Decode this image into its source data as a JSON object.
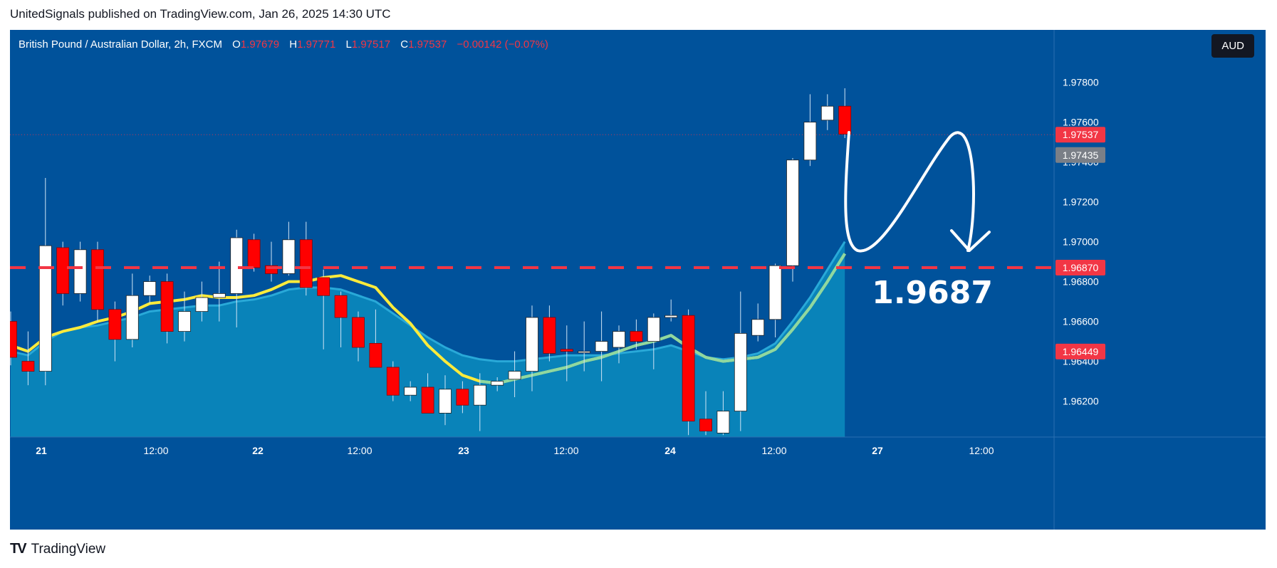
{
  "header": {
    "published": "UnitedSignals published on TradingView.com, Jan 26, 2025 14:30 UTC"
  },
  "legend": {
    "symbol": "British Pound / Australian Dollar, 2h, FXCM",
    "o_label": "O",
    "o_value": "1.97679",
    "h_label": "H",
    "h_value": "1.97771",
    "l_label": "L",
    "l_value": "1.97517",
    "c_label": "C",
    "c_value": "1.97537",
    "change": "−0.00142 (−0.07%)"
  },
  "currency_button": "AUD",
  "footer": {
    "brand": "TradingView",
    "logo_glyph": "TV"
  },
  "annotation": {
    "target_text": "1.9687"
  },
  "colors": {
    "background": "#00529b",
    "bull": "#ffffff",
    "bear": "#ff0000",
    "ma_fast": "#ffeb3b",
    "ma_slow": "#8fd8a0",
    "area": "#0a86bb",
    "level": "#f23645"
  },
  "chart_data": {
    "type": "candlestick",
    "title": "British Pound / Australian Dollar, 2h, FXCM",
    "ylim": [
      1.9602,
      1.9792
    ],
    "y_ticks": [
      "1.97800",
      "1.97600",
      "1.97400",
      "1.97200",
      "1.97000",
      "1.96800",
      "1.96600",
      "1.96400",
      "1.96200"
    ],
    "x_ticks": [
      "21",
      "12:00",
      "22",
      "12:00",
      "23",
      "12:00",
      "24",
      "12:00",
      "27",
      "12:00"
    ],
    "price_labels": [
      {
        "text": "1.97537",
        "value": 1.97537,
        "color": "#f23645"
      },
      {
        "text": "1.97435",
        "value": 1.97435,
        "color": "#7a7f87"
      },
      {
        "text": "1.96870",
        "value": 1.9687,
        "color": "#f23645"
      },
      {
        "text": "1.96449",
        "value": 1.96449,
        "color": "#f23645"
      }
    ],
    "level": 1.9687,
    "candles": [
      [
        1.966,
        1.9665,
        1.9638,
        1.9642
      ],
      [
        1.964,
        1.9655,
        1.9628,
        1.9635
      ],
      [
        1.9635,
        1.9732,
        1.9628,
        1.9698
      ],
      [
        1.9697,
        1.97,
        1.9668,
        1.9674
      ],
      [
        1.9674,
        1.97,
        1.967,
        1.9696
      ],
      [
        1.9696,
        1.97,
        1.966,
        1.9666
      ],
      [
        1.9666,
        1.967,
        1.964,
        1.9651
      ],
      [
        1.9651,
        1.9684,
        1.9647,
        1.9673
      ],
      [
        1.9673,
        1.9683,
        1.9669,
        1.968
      ],
      [
        1.968,
        1.9684,
        1.9649,
        1.9655
      ],
      [
        1.9655,
        1.9675,
        1.965,
        1.9665
      ],
      [
        1.9665,
        1.968,
        1.966,
        1.9672
      ],
      [
        1.9672,
        1.969,
        1.966,
        1.9674
      ],
      [
        1.9674,
        1.9706,
        1.9657,
        1.9702
      ],
      [
        1.9701,
        1.9704,
        1.9685,
        1.9687
      ],
      [
        1.9688,
        1.97,
        1.968,
        1.9684
      ],
      [
        1.9684,
        1.971,
        1.9683,
        1.9701
      ],
      [
        1.9701,
        1.971,
        1.9673,
        1.9677
      ],
      [
        1.9682,
        1.9686,
        1.9646,
        1.9673
      ],
      [
        1.9673,
        1.9675,
        1.9647,
        1.9662
      ],
      [
        1.9662,
        1.9665,
        1.964,
        1.9647
      ],
      [
        1.9649,
        1.9666,
        1.9638,
        1.9637
      ],
      [
        1.9637,
        1.964,
        1.962,
        1.9623
      ],
      [
        1.9623,
        1.963,
        1.962,
        1.9627
      ],
      [
        1.9627,
        1.9634,
        1.9615,
        1.9614
      ],
      [
        1.9614,
        1.9633,
        1.9608,
        1.9626
      ],
      [
        1.9626,
        1.963,
        1.9614,
        1.9618
      ],
      [
        1.9618,
        1.9634,
        1.9605,
        1.9628
      ],
      [
        1.9628,
        1.9632,
        1.9625,
        1.963
      ],
      [
        1.9631,
        1.9645,
        1.9622,
        1.9635
      ],
      [
        1.9635,
        1.9668,
        1.9625,
        1.9662
      ],
      [
        1.9662,
        1.9668,
        1.964,
        1.9644
      ],
      [
        1.9646,
        1.9658,
        1.963,
        1.9645
      ],
      [
        1.9645,
        1.966,
        1.9635,
        1.9645
      ],
      [
        1.9645,
        1.9665,
        1.963,
        1.965
      ],
      [
        1.9647,
        1.9658,
        1.9639,
        1.9655
      ],
      [
        1.9655,
        1.9661,
        1.9646,
        1.965
      ],
      [
        1.965,
        1.9664,
        1.9636,
        1.9662
      ],
      [
        1.9662,
        1.9671,
        1.966,
        1.9663
      ],
      [
        1.9663,
        1.9666,
        1.9603,
        1.961
      ],
      [
        1.9611,
        1.9625,
        1.9603,
        1.9605
      ],
      [
        1.9604,
        1.9625,
        1.9603,
        1.9615
      ],
      [
        1.9615,
        1.9675,
        1.9605,
        1.9654
      ],
      [
        1.9653,
        1.9669,
        1.965,
        1.9661
      ],
      [
        1.9661,
        1.9689,
        1.9652,
        1.9688
      ],
      [
        1.9688,
        1.9742,
        1.968,
        1.9741
      ],
      [
        1.9741,
        1.9774,
        1.9738,
        1.976
      ],
      [
        1.9761,
        1.9774,
        1.9756,
        1.9768
      ],
      [
        1.9768,
        1.9777,
        1.9752,
        1.9754
      ]
    ],
    "ma_fast": [
      1.9648,
      1.9645,
      1.9652,
      1.9655,
      1.9657,
      1.966,
      1.9662,
      1.9665,
      1.9669,
      1.967,
      1.9671,
      1.9673,
      1.9672,
      1.9672,
      1.9673,
      1.9676,
      1.968,
      1.968,
      1.9682,
      1.9683,
      1.968,
      1.9677,
      1.9667,
      1.9659,
      1.9648,
      1.964,
      1.9633,
      1.963,
      1.9629,
      1.9631,
      1.9633,
      1.9635,
      1.9637,
      1.964,
      1.9642,
      1.9645,
      1.9648,
      1.965,
      1.9653,
      1.9647,
      1.9642,
      1.964,
      1.9641,
      1.9642,
      1.9646,
      1.9656,
      1.9667,
      1.968,
      1.9694
    ],
    "ma_slow": [
      1.9645,
      1.9643,
      1.965,
      1.9655,
      1.9657,
      1.9658,
      1.966,
      1.9662,
      1.9665,
      1.9666,
      1.9667,
      1.9668,
      1.9668,
      1.967,
      1.9671,
      1.9673,
      1.9676,
      1.9677,
      1.9677,
      1.9676,
      1.9673,
      1.967,
      1.9664,
      1.9658,
      1.9652,
      1.9647,
      1.9643,
      1.9641,
      1.964,
      1.964,
      1.9641,
      1.9642,
      1.9643,
      1.9643,
      1.9643,
      1.9644,
      1.9645,
      1.9646,
      1.9648,
      1.9645,
      1.9642,
      1.9641,
      1.9642,
      1.9644,
      1.9649,
      1.966,
      1.9672,
      1.9686,
      1.97
    ]
  }
}
